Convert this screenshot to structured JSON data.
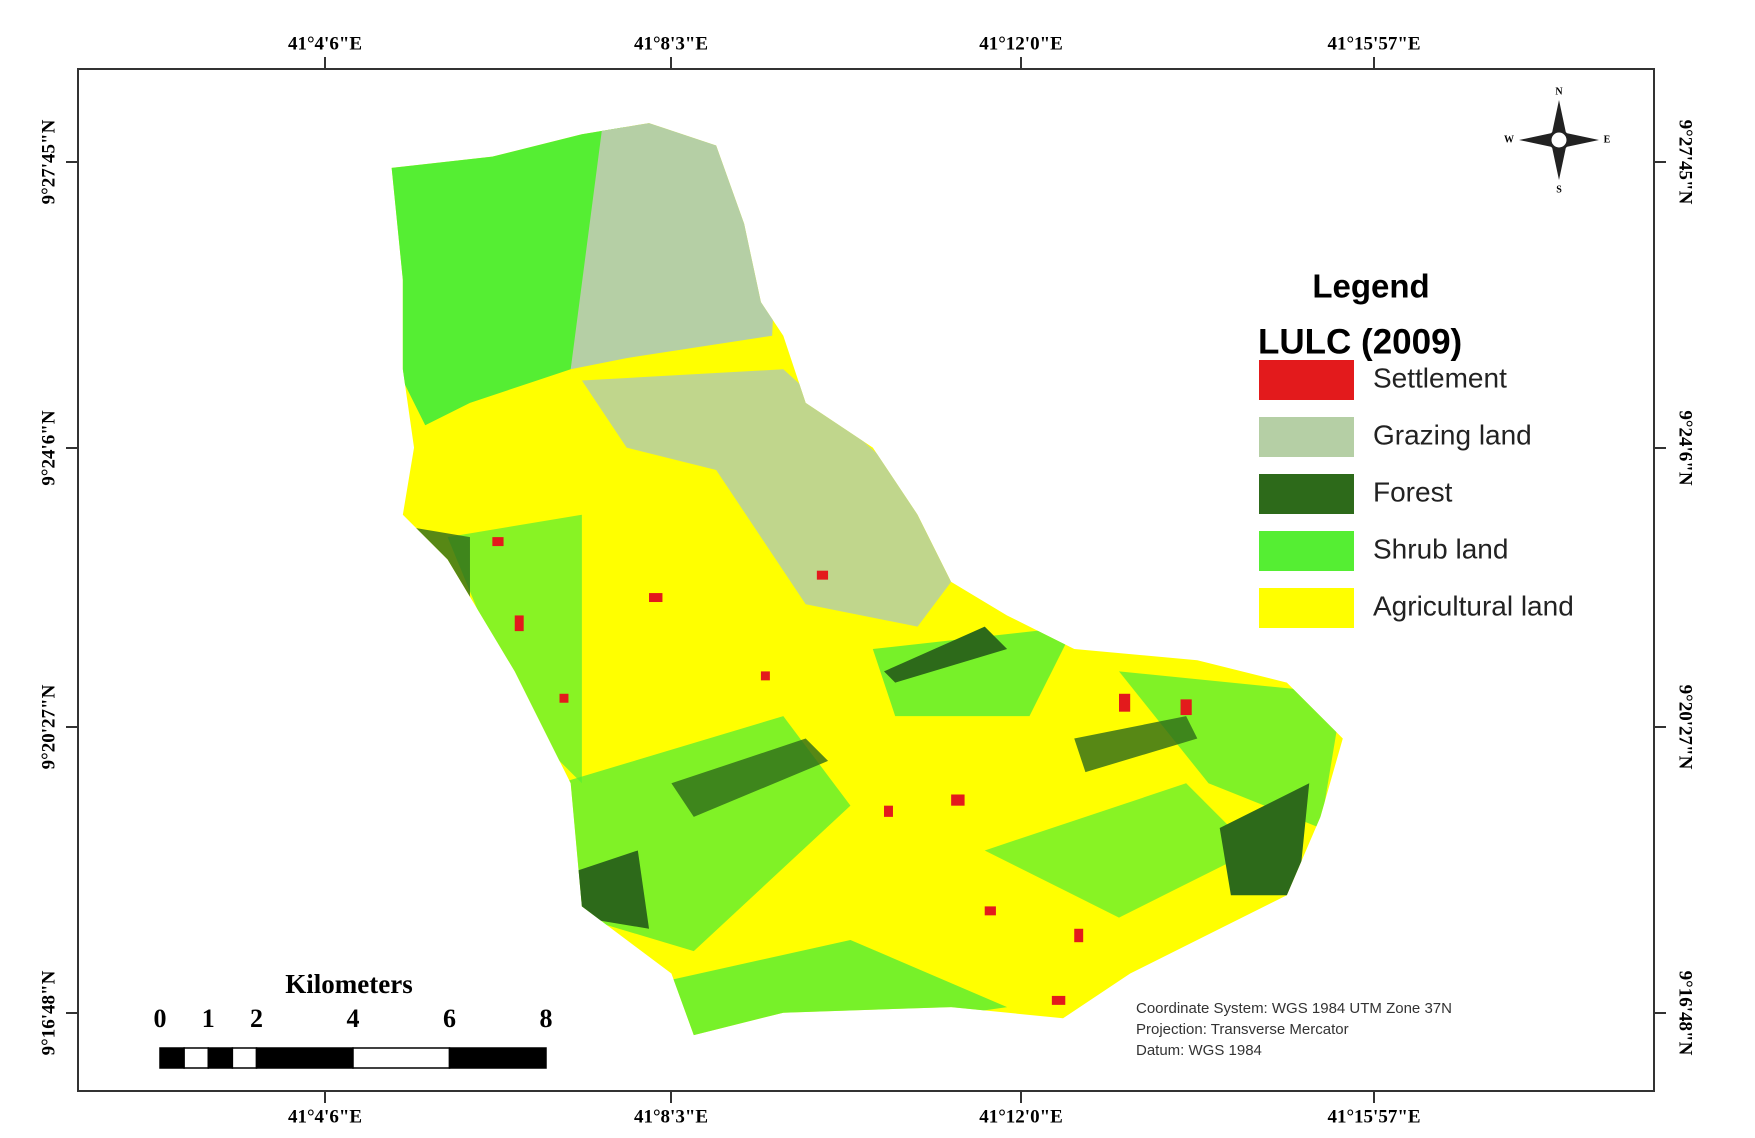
{
  "map": {
    "top_labels": [
      "41°4'6\"E",
      "41°8'3\"E",
      "41°12'0\"E",
      "41°15'57\"E"
    ],
    "bottom_labels": [
      "41°4'6\"E",
      "41°8'3\"E",
      "41°12'0\"E",
      "41°15'57\"E"
    ],
    "left_labels": [
      "9°27'45\"N",
      "9°24'6\"N",
      "9°20'27\"N",
      "9°16'48\"N"
    ],
    "right_labels": [
      "9°27'45\"N",
      "9°24'6\"N",
      "9°20'27\"N",
      "9°16'48\"N"
    ],
    "compass": {
      "n": "N",
      "s": "S",
      "e": "E",
      "w": "W"
    },
    "legend": {
      "title": "Legend",
      "subtitle": "LULC (2009)",
      "items": [
        {
          "label": "Settlement",
          "color": "#e31a1c"
        },
        {
          "label": "Grazing land",
          "color": "#b5cfa5"
        },
        {
          "label": "Forest",
          "color": "#2d6a1a"
        },
        {
          "label": "Shrub land",
          "color": "#55ee33"
        },
        {
          "label": "Agricultural land",
          "color": "#ffff00"
        }
      ]
    },
    "scale_bar": {
      "title": "Kilometers",
      "ticks": [
        0,
        1,
        2,
        4,
        6,
        8
      ]
    },
    "notes": [
      "Coordinate System: WGS 1984 UTM Zone 37N",
      "Projection: Transverse Mercator",
      "Datum: WGS 1984"
    ]
  }
}
